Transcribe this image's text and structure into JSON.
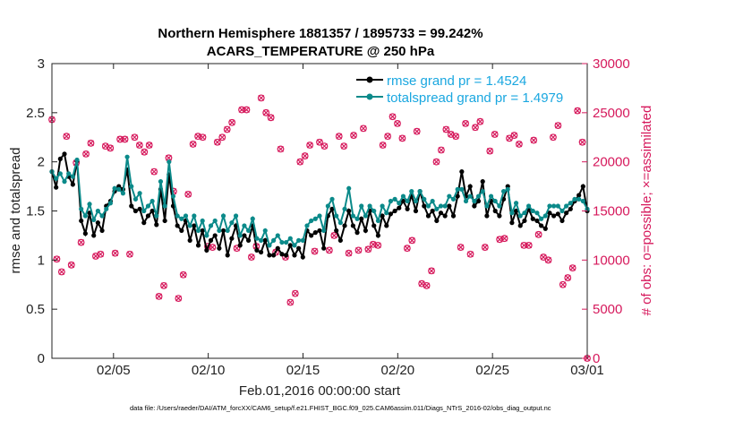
{
  "chart_data": {
    "type": "line",
    "title": [
      "Northern Hemisphere 1881357 / 1895733 = 99.242%",
      "ACARS_TEMPERATURE @ 250 hPa"
    ],
    "xlabel": "Feb.01,2016 00:00:00 start",
    "ylabel": "rmse and totalspread",
    "ylabel_right": "# of obs: o=possible; ×=assimilated",
    "x_unit": "days since Feb.01,2016 00:00:00",
    "xlim": [
      0.75,
      29
    ],
    "ylim": [
      0,
      3
    ],
    "ylim_right": [
      0,
      30000
    ],
    "x_ticks": [
      4,
      9,
      14,
      19,
      24,
      29
    ],
    "x_tick_labels": [
      "02/05",
      "02/10",
      "02/15",
      "02/20",
      "02/25",
      "03/01"
    ],
    "y_ticks": [
      0,
      0.5,
      1,
      1.5,
      2,
      2.5,
      3
    ],
    "y_tick_labels": [
      "0",
      "0.5",
      "1",
      "1.5",
      "2",
      "2.5",
      "3"
    ],
    "y_right_ticks": [
      0,
      5000,
      10000,
      15000,
      20000,
      25000,
      30000
    ],
    "y_right_tick_labels": [
      "0",
      "5000",
      "10000",
      "15000",
      "20000",
      "25000",
      "30000"
    ],
    "legend_position": "top-right",
    "grid": false,
    "colors": {
      "rmse": "#000000",
      "totalspread": "#0b8a8a",
      "obs": "#d6195c",
      "legend_text": "#1aa7e0",
      "right_axis": "#d6195c"
    },
    "series": [
      {
        "name": "rmse grand pr = 1.4524",
        "color": "#000000",
        "values": [
          1.9,
          1.74,
          2.03,
          2.08,
          1.85,
          1.77,
          2.01,
          1.4,
          1.27,
          1.48,
          1.25,
          1.38,
          1.3,
          1.55,
          1.6,
          1.7,
          1.75,
          1.72,
          1.92,
          1.55,
          1.5,
          1.52,
          1.38,
          1.45,
          1.5,
          1.36,
          1.72,
          1.4,
          1.87,
          1.55,
          1.35,
          1.3,
          1.4,
          1.2,
          1.35,
          1.15,
          1.3,
          1.1,
          1.2,
          1.25,
          1.12,
          1.3,
          1.05,
          1.22,
          1.35,
          1.15,
          1.25,
          1.2,
          1.35,
          1.1,
          1.08,
          1.2,
          1.05,
          1.05,
          1.12,
          1.06,
          1.05,
          1.15,
          1.05,
          1.12,
          1.03,
          1.3,
          1.25,
          1.28,
          1.3,
          1.12,
          1.45,
          1.52,
          1.3,
          1.2,
          1.35,
          1.5,
          1.35,
          1.28,
          1.42,
          1.3,
          1.5,
          1.35,
          1.25,
          1.45,
          1.35,
          1.47,
          1.5,
          1.53,
          1.6,
          1.52,
          1.66,
          1.5,
          1.7,
          1.55,
          1.45,
          1.5,
          1.4,
          1.48,
          1.45,
          1.55,
          1.45,
          1.65,
          1.9,
          1.65,
          1.75,
          1.55,
          1.6,
          1.8,
          1.45,
          1.6,
          1.5,
          1.45,
          1.62,
          1.75,
          1.38,
          1.5,
          1.35,
          1.4,
          1.52,
          1.42,
          1.4,
          1.35,
          1.32,
          1.48,
          1.45,
          1.47,
          1.4,
          1.48,
          1.52,
          1.6,
          1.66,
          1.75,
          1.5
        ]
      },
      {
        "name": "totalspread grand pr = 1.4979",
        "color": "#0b8a8a",
        "values": [
          1.9,
          1.83,
          1.88,
          1.8,
          1.88,
          1.85,
          2.02,
          1.52,
          1.45,
          1.57,
          1.41,
          1.5,
          1.45,
          1.52,
          1.58,
          1.73,
          1.72,
          1.68,
          2.05,
          1.75,
          1.62,
          1.68,
          1.5,
          1.55,
          1.6,
          1.45,
          1.8,
          1.55,
          2.0,
          1.65,
          1.45,
          1.42,
          1.45,
          1.35,
          1.45,
          1.3,
          1.4,
          1.25,
          1.35,
          1.4,
          1.3,
          1.45,
          1.3,
          1.38,
          1.45,
          1.25,
          1.35,
          1.3,
          1.42,
          1.22,
          1.2,
          1.3,
          1.15,
          1.2,
          1.25,
          1.18,
          1.18,
          1.22,
          1.15,
          1.2,
          1.2,
          1.35,
          1.4,
          1.42,
          1.45,
          1.3,
          1.55,
          1.62,
          1.45,
          1.38,
          1.52,
          1.73,
          1.45,
          1.42,
          1.55,
          1.45,
          1.55,
          1.5,
          1.4,
          1.55,
          1.48,
          1.6,
          1.62,
          1.58,
          1.65,
          1.6,
          1.7,
          1.6,
          1.7,
          1.62,
          1.55,
          1.6,
          1.52,
          1.55,
          1.55,
          1.65,
          1.62,
          1.72,
          1.72,
          1.6,
          1.65,
          1.6,
          1.65,
          1.7,
          1.55,
          1.65,
          1.6,
          1.55,
          1.7,
          1.72,
          1.48,
          1.58,
          1.45,
          1.48,
          1.55,
          1.5,
          1.48,
          1.42,
          1.45,
          1.55,
          1.55,
          1.55,
          1.5,
          1.55,
          1.58,
          1.62,
          1.62,
          1.6,
          1.52
        ]
      }
    ],
    "obs_possible": [
      24300,
      10100,
      8800,
      22600,
      9500,
      19900,
      11800,
      20800,
      21900,
      10400,
      10600,
      21600,
      21400,
      10700,
      22300,
      22300,
      10600,
      22500,
      21700,
      21000,
      21700,
      19000,
      6300,
      7400,
      20400,
      17000,
      6100,
      8500,
      16700,
      21800,
      22600,
      22500,
      11400,
      11300,
      22000,
      22500,
      23300,
      24000,
      11200,
      25300,
      25300,
      10300,
      11400,
      26500,
      25000,
      24500,
      10800,
      21300,
      10300,
      5700,
      6600,
      20000,
      20600,
      21700,
      10900,
      22000,
      21600,
      11000,
      12500,
      22600,
      21600,
      10700,
      22700,
      11000,
      23400,
      11100,
      11600,
      11500,
      21700,
      22600,
      24600,
      23900,
      22400,
      11200,
      12000,
      23100,
      7600,
      7400,
      8900,
      20000,
      21200,
      23300,
      22800,
      22600,
      11300,
      23900,
      10600,
      23500,
      24100,
      11300,
      21100,
      22800,
      12100,
      12200,
      22400,
      22700,
      21800,
      11500,
      11500,
      22200,
      12600,
      10300,
      10000,
      22500,
      23700,
      7500,
      8200,
      9200,
      25200,
      22000,
      0
    ],
    "obs_assimilated": [
      24300,
      10100,
      8800,
      22600,
      9500,
      19900,
      11800,
      20800,
      21900,
      10400,
      10600,
      21600,
      21400,
      10700,
      22300,
      22300,
      10600,
      22500,
      21700,
      21000,
      21700,
      19000,
      6300,
      7400,
      20400,
      17000,
      6100,
      8500,
      16700,
      21800,
      22600,
      22500,
      11400,
      11300,
      22000,
      22500,
      23300,
      24000,
      11200,
      25300,
      25300,
      10300,
      11400,
      26500,
      25000,
      24500,
      10800,
      21300,
      10300,
      5700,
      6600,
      20000,
      20600,
      21700,
      10900,
      22000,
      21600,
      11000,
      12500,
      22600,
      21600,
      10700,
      22700,
      11000,
      23400,
      11100,
      11600,
      11500,
      21700,
      22600,
      24600,
      23900,
      22400,
      11200,
      12000,
      23100,
      7600,
      7400,
      8900,
      20000,
      21200,
      23300,
      22800,
      22600,
      11300,
      23900,
      10600,
      23500,
      24100,
      11300,
      21100,
      22800,
      12100,
      12200,
      22400,
      22700,
      21800,
      11500,
      11500,
      22200,
      12600,
      10300,
      10000,
      22500,
      23700,
      7500,
      8200,
      9200,
      25200,
      22000,
      0
    ]
  },
  "footer": "data file: /Users/raeder/DAI/ATM_forcXX/CAM6_setup/f.e21.FHIST_BGC.f09_025.CAM6assim.011/Diags_NTrS_2016-02/obs_diag_output.nc"
}
